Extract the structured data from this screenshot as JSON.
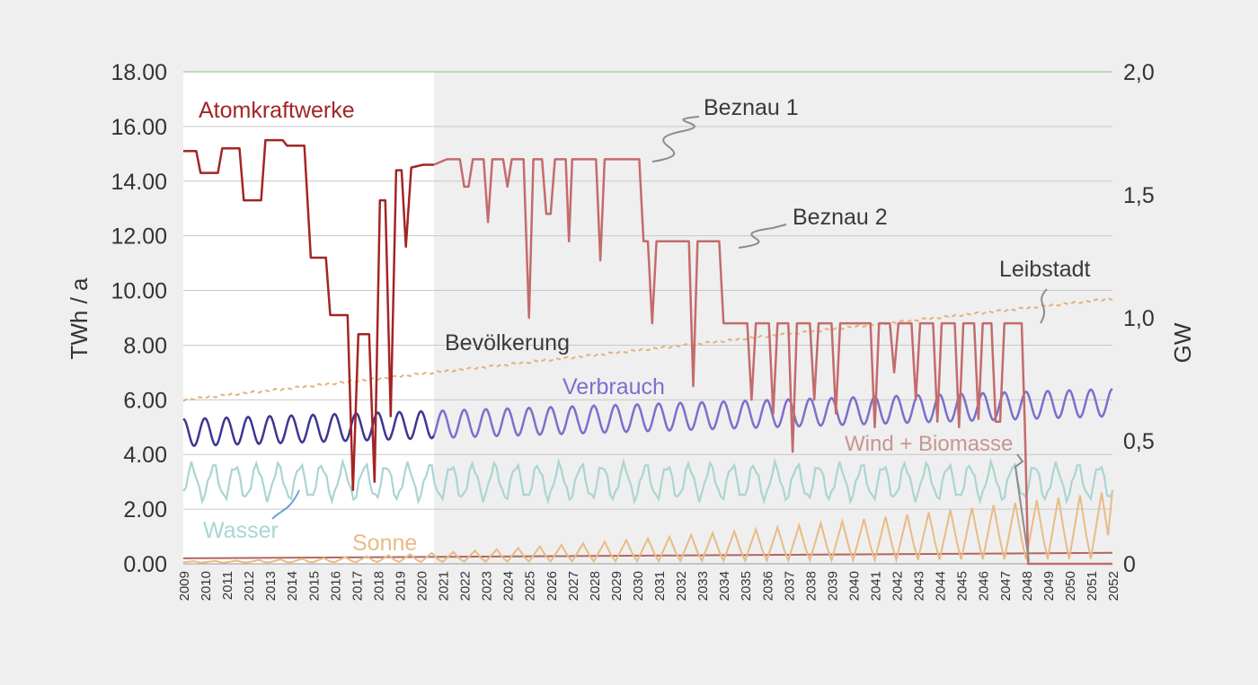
{
  "chart_data": {
    "type": "line",
    "xlabel": "",
    "ylabel": "TWh / a",
    "y2label": "GW",
    "ylim": [
      0,
      18
    ],
    "y2lim": [
      0,
      2
    ],
    "yticks": [
      "0.00",
      "2.00",
      "4.00",
      "6.00",
      "8.00",
      "10.00",
      "12.00",
      "14.00",
      "16.00",
      "18.00"
    ],
    "y2ticks": [
      "0",
      "0,5",
      "1,0",
      "1,5",
      "2,0"
    ],
    "xticks": [
      "2009",
      "2010",
      "2011",
      "2012",
      "2013",
      "2014",
      "2015",
      "2016",
      "2017",
      "2018",
      "2019",
      "2020",
      "2021",
      "2022",
      "2023",
      "2024",
      "2025",
      "2026",
      "2027",
      "2028",
      "2029",
      "2030",
      "2031",
      "2032",
      "2033",
      "2034",
      "2035",
      "2036",
      "2037",
      "2038",
      "2039",
      "2040",
      "2041",
      "2042",
      "2043",
      "2044",
      "2045",
      "2046",
      "2047",
      "2048",
      "2049",
      "2050",
      "2051",
      "2052"
    ],
    "xlim": [
      2009,
      2052
    ],
    "history_until": 2020.6,
    "grid": "horizontal",
    "colors": {
      "atom_hist": "#a32525",
      "atom_fc": "#c46b6b",
      "verbrauch_hist": "#3d3693",
      "verbrauch_fc": "#7b6fcc",
      "wasser": "#a9d5d3",
      "sonne": "#e8bb85",
      "bevoelkerung": "#e3b27a",
      "wind": "#b2665e",
      "wind_label": "#c89590",
      "callout": "#8c8c8c",
      "wasser_callout": "#6aa3d3",
      "grid": "#c9c9c9",
      "text": "#333333",
      "top_border": "#a9d3a0"
    },
    "series": [
      {
        "name": "Atomkraftwerke",
        "axis": "left",
        "points": [
          [
            2009,
            15.1
          ],
          [
            2009.6,
            15.1
          ],
          [
            2009.8,
            14.3
          ],
          [
            2010.6,
            14.3
          ],
          [
            2010.8,
            15.2
          ],
          [
            2011.6,
            15.2
          ],
          [
            2011.8,
            13.3
          ],
          [
            2012.6,
            13.3
          ],
          [
            2012.8,
            15.5
          ],
          [
            2013.6,
            15.5
          ],
          [
            2013.8,
            15.3
          ],
          [
            2014.6,
            15.3
          ],
          [
            2014.9,
            11.2
          ],
          [
            2015.6,
            11.2
          ],
          [
            2015.8,
            9.1
          ],
          [
            2016.6,
            9.1
          ],
          [
            2016.85,
            2.7
          ],
          [
            2017.1,
            8.4
          ],
          [
            2017.6,
            8.4
          ],
          [
            2017.85,
            3.0
          ],
          [
            2018.1,
            13.3
          ],
          [
            2018.35,
            13.3
          ],
          [
            2018.6,
            5.4
          ],
          [
            2018.85,
            14.4
          ],
          [
            2019.1,
            14.4
          ],
          [
            2019.3,
            11.6
          ],
          [
            2019.55,
            14.5
          ],
          [
            2020.1,
            14.6
          ],
          [
            2020.6,
            14.6
          ],
          [
            2020.6,
            14.6
          ],
          [
            2021.2,
            14.8
          ],
          [
            2021.8,
            14.8
          ],
          [
            2022.0,
            13.8
          ],
          [
            2022.2,
            13.8
          ],
          [
            2022.4,
            14.8
          ],
          [
            2022.9,
            14.8
          ],
          [
            2023.1,
            12.5
          ],
          [
            2023.3,
            14.8
          ],
          [
            2023.8,
            14.8
          ],
          [
            2024.0,
            13.8
          ],
          [
            2024.2,
            14.8
          ],
          [
            2024.6,
            14.8
          ],
          [
            2024.75,
            14.8
          ],
          [
            2025.0,
            9.0
          ],
          [
            2025.2,
            14.8
          ],
          [
            2025.6,
            14.8
          ],
          [
            2025.8,
            12.8
          ],
          [
            2026.0,
            12.8
          ],
          [
            2026.2,
            14.8
          ],
          [
            2026.7,
            14.8
          ],
          [
            2026.85,
            11.8
          ],
          [
            2027.0,
            14.8
          ],
          [
            2028.1,
            14.8
          ],
          [
            2028.3,
            11.1
          ],
          [
            2028.5,
            14.8
          ],
          [
            2029.0,
            14.8
          ],
          [
            2029.2,
            14.8
          ],
          [
            2030.1,
            14.8
          ],
          [
            2030.3,
            11.8
          ],
          [
            2030.5,
            11.8
          ],
          [
            2030.7,
            8.8
          ],
          [
            2030.9,
            11.8
          ],
          [
            2032.4,
            11.8
          ],
          [
            2032.6,
            6.5
          ],
          [
            2032.8,
            11.8
          ],
          [
            2033.8,
            11.8
          ],
          [
            2034.0,
            8.8
          ],
          [
            2035.1,
            8.8
          ],
          [
            2035.3,
            6.0
          ],
          [
            2035.5,
            8.8
          ],
          [
            2036.1,
            8.8
          ],
          [
            2036.3,
            5.5
          ],
          [
            2036.5,
            8.8
          ],
          [
            2037.0,
            8.8
          ],
          [
            2037.2,
            4.1
          ],
          [
            2037.4,
            8.8
          ],
          [
            2038.0,
            8.8
          ],
          [
            2038.2,
            6.0
          ],
          [
            2038.4,
            8.8
          ],
          [
            2039.0,
            8.8
          ],
          [
            2039.2,
            5.5
          ],
          [
            2039.4,
            8.8
          ],
          [
            2040.8,
            8.8
          ],
          [
            2041.0,
            5.0
          ],
          [
            2041.2,
            8.8
          ],
          [
            2041.7,
            8.8
          ],
          [
            2041.9,
            7.0
          ],
          [
            2042.1,
            8.8
          ],
          [
            2042.7,
            8.8
          ],
          [
            2042.9,
            6.0
          ],
          [
            2043.1,
            8.8
          ],
          [
            2043.7,
            8.8
          ],
          [
            2043.9,
            5.2
          ],
          [
            2044.1,
            8.8
          ],
          [
            2044.7,
            8.8
          ],
          [
            2044.9,
            5.0
          ],
          [
            2045.1,
            8.8
          ],
          [
            2045.6,
            8.8
          ],
          [
            2045.8,
            5.3
          ],
          [
            2046.0,
            8.8
          ],
          [
            2046.4,
            8.8
          ],
          [
            2046.6,
            5.2
          ],
          [
            2046.8,
            5.2
          ],
          [
            2047.0,
            8.8
          ],
          [
            2047.8,
            8.8
          ],
          [
            2047.95,
            5.0
          ],
          [
            2048.1,
            0.0
          ],
          [
            2052,
            0.0
          ]
        ]
      },
      {
        "name": "Bevölkerung",
        "axis": "left",
        "points": [
          [
            2009,
            6.0
          ],
          [
            2052,
            9.7
          ]
        ]
      },
      {
        "name": "Verbrauch",
        "axis": "left",
        "mean_start": 4.8,
        "mean_end": 5.9,
        "amplitude": 0.5,
        "cycles_per_year": 1
      },
      {
        "name": "Wasser",
        "axis": "left",
        "mean": 3.0,
        "amplitude": 0.6
      },
      {
        "name": "Sonne",
        "axis": "left",
        "peak_start": 0.1,
        "peak_end": 2.7
      },
      {
        "name": "Wind + Biomasse",
        "axis": "left",
        "points": [
          [
            2009,
            0.2
          ],
          [
            2020,
            0.25
          ],
          [
            2052,
            0.4
          ]
        ]
      }
    ],
    "annotations": {
      "atomkraftwerke": "Atomkraftwerke",
      "beznau1": "Beznau 1",
      "beznau2": "Beznau 2",
      "leibstadt": "Leibstadt",
      "bevoelkerung": "Bevölkerung",
      "verbrauch": "Verbrauch",
      "wind": "Wind + Biomasse",
      "wasser": "Wasser",
      "sonne": "Sonne"
    }
  }
}
